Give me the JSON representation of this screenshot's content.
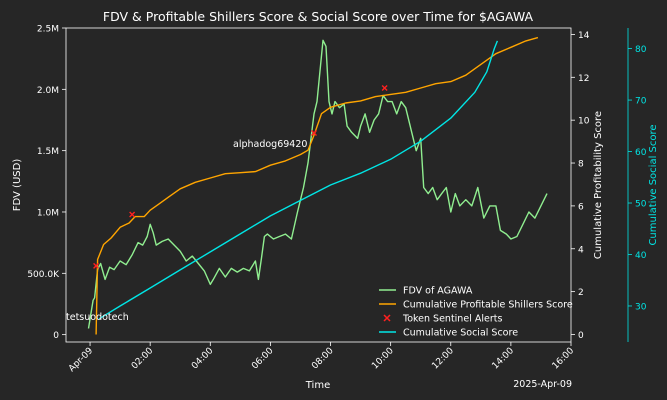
{
  "chart_data": {
    "type": "line",
    "title": "FDV & Profitable Shillers Score & Social Score over Time for $AGAWA",
    "xlabel": "Time",
    "x_date_label": "2025-Apr-09",
    "x_range_hours": [
      -0.8,
      16.0
    ],
    "x_ticks": [
      {
        "h": 0,
        "label": "Apr-09"
      },
      {
        "h": 2,
        "label": "02:00"
      },
      {
        "h": 4,
        "label": "04:00"
      },
      {
        "h": 6,
        "label": "06:00"
      },
      {
        "h": 8,
        "label": "08:00"
      },
      {
        "h": 10,
        "label": "10:00"
      },
      {
        "h": 12,
        "label": "12:00"
      },
      {
        "h": 14,
        "label": "14:00"
      },
      {
        "h": 16,
        "label": "16:00"
      }
    ],
    "y_left": {
      "label": "FDV (USD)",
      "range": [
        -60000,
        2500000
      ],
      "ticks": [
        {
          "v": 0,
          "label": "0"
        },
        {
          "v": 500000,
          "label": "500.0K"
        },
        {
          "v": 1000000,
          "label": "1.0M"
        },
        {
          "v": 1500000,
          "label": "1.5M"
        },
        {
          "v": 2000000,
          "label": "2.0M"
        },
        {
          "v": 2500000,
          "label": "2.5M"
        }
      ]
    },
    "y_right": {
      "label": "Cumulative Profitability Score",
      "range": [
        -0.35,
        14.3
      ],
      "ticks": [
        0,
        2,
        4,
        6,
        8,
        10,
        12,
        14
      ]
    },
    "y_right2": {
      "label": "Cumulative Social Score",
      "range": [
        23,
        84
      ],
      "ticks": [
        30,
        40,
        50,
        60,
        70,
        80
      ]
    },
    "colors": {
      "fdv": "#90ee90",
      "profit": "#ffa500",
      "social": "#00e5e5",
      "alerts": "#ff2020",
      "axis": "#ffffff",
      "social_axis": "#00e5e5",
      "background": "#262626"
    },
    "series": [
      {
        "name": "FDV of AGAWA",
        "axis": "left",
        "points": [
          [
            -0.05,
            50000
          ],
          [
            0.1,
            280000
          ],
          [
            0.15,
            300000
          ],
          [
            0.25,
            530000
          ],
          [
            0.35,
            580000
          ],
          [
            0.5,
            450000
          ],
          [
            0.65,
            550000
          ],
          [
            0.8,
            530000
          ],
          [
            1.0,
            600000
          ],
          [
            1.2,
            570000
          ],
          [
            1.4,
            650000
          ],
          [
            1.6,
            750000
          ],
          [
            1.75,
            730000
          ],
          [
            1.9,
            800000
          ],
          [
            2.0,
            900000
          ],
          [
            2.1,
            830000
          ],
          [
            2.2,
            730000
          ],
          [
            2.4,
            760000
          ],
          [
            2.6,
            780000
          ],
          [
            2.8,
            730000
          ],
          [
            3.0,
            680000
          ],
          [
            3.2,
            600000
          ],
          [
            3.4,
            640000
          ],
          [
            3.6,
            580000
          ],
          [
            3.8,
            520000
          ],
          [
            4.0,
            410000
          ],
          [
            4.1,
            450000
          ],
          [
            4.3,
            540000
          ],
          [
            4.5,
            470000
          ],
          [
            4.7,
            540000
          ],
          [
            4.9,
            510000
          ],
          [
            5.1,
            540000
          ],
          [
            5.3,
            520000
          ],
          [
            5.5,
            600000
          ],
          [
            5.6,
            450000
          ],
          [
            5.7,
            620000
          ],
          [
            5.8,
            800000
          ],
          [
            5.9,
            820000
          ],
          [
            6.1,
            780000
          ],
          [
            6.3,
            800000
          ],
          [
            6.5,
            820000
          ],
          [
            6.7,
            780000
          ],
          [
            6.9,
            1000000
          ],
          [
            7.1,
            1200000
          ],
          [
            7.25,
            1400000
          ],
          [
            7.35,
            1600000
          ],
          [
            7.45,
            1800000
          ],
          [
            7.55,
            1900000
          ],
          [
            7.65,
            2150000
          ],
          [
            7.75,
            2400000
          ],
          [
            7.85,
            2350000
          ],
          [
            7.95,
            1900000
          ],
          [
            8.05,
            1800000
          ],
          [
            8.15,
            1900000
          ],
          [
            8.3,
            1850000
          ],
          [
            8.45,
            1880000
          ],
          [
            8.55,
            1700000
          ],
          [
            8.7,
            1650000
          ],
          [
            8.9,
            1600000
          ],
          [
            9.0,
            1700000
          ],
          [
            9.15,
            1800000
          ],
          [
            9.3,
            1650000
          ],
          [
            9.45,
            1750000
          ],
          [
            9.6,
            1800000
          ],
          [
            9.75,
            1950000
          ],
          [
            9.9,
            1900000
          ],
          [
            10.05,
            1900000
          ],
          [
            10.2,
            1800000
          ],
          [
            10.35,
            1900000
          ],
          [
            10.5,
            1850000
          ],
          [
            10.65,
            1700000
          ],
          [
            10.85,
            1500000
          ],
          [
            11.0,
            1600000
          ],
          [
            11.1,
            1200000
          ],
          [
            11.25,
            1150000
          ],
          [
            11.4,
            1200000
          ],
          [
            11.55,
            1100000
          ],
          [
            11.7,
            1150000
          ],
          [
            11.85,
            1200000
          ],
          [
            12.0,
            1000000
          ],
          [
            12.15,
            1150000
          ],
          [
            12.3,
            1050000
          ],
          [
            12.5,
            1100000
          ],
          [
            12.7,
            1050000
          ],
          [
            12.9,
            1200000
          ],
          [
            13.1,
            950000
          ],
          [
            13.3,
            1050000
          ],
          [
            13.5,
            1050000
          ],
          [
            13.65,
            850000
          ],
          [
            13.85,
            820000
          ],
          [
            14.0,
            780000
          ],
          [
            14.2,
            800000
          ],
          [
            14.4,
            900000
          ],
          [
            14.6,
            1000000
          ],
          [
            14.8,
            950000
          ],
          [
            15.0,
            1050000
          ],
          [
            15.2,
            1150000
          ]
        ]
      },
      {
        "name": "Cumulative Profitable Shillers Score",
        "axis": "right",
        "points": [
          [
            0.2,
            0
          ],
          [
            0.25,
            3.5
          ],
          [
            0.45,
            4.2
          ],
          [
            0.7,
            4.5
          ],
          [
            1.0,
            5.0
          ],
          [
            1.3,
            5.2
          ],
          [
            1.5,
            5.5
          ],
          [
            1.8,
            5.5
          ],
          [
            2.0,
            5.8
          ],
          [
            2.3,
            6.1
          ],
          [
            2.6,
            6.4
          ],
          [
            3.0,
            6.8
          ],
          [
            3.5,
            7.1
          ],
          [
            4.0,
            7.3
          ],
          [
            4.5,
            7.5
          ],
          [
            5.0,
            7.55
          ],
          [
            5.5,
            7.6
          ],
          [
            6.0,
            7.9
          ],
          [
            6.5,
            8.1
          ],
          [
            7.0,
            8.4
          ],
          [
            7.25,
            8.6
          ],
          [
            7.45,
            9.3
          ],
          [
            7.7,
            10.3
          ],
          [
            8.0,
            10.6
          ],
          [
            8.5,
            10.8
          ],
          [
            9.0,
            10.9
          ],
          [
            9.5,
            11.1
          ],
          [
            10.0,
            11.2
          ],
          [
            10.5,
            11.3
          ],
          [
            11.0,
            11.5
          ],
          [
            11.5,
            11.7
          ],
          [
            12.0,
            11.8
          ],
          [
            12.5,
            12.1
          ],
          [
            13.0,
            12.6
          ],
          [
            13.5,
            13.1
          ],
          [
            14.0,
            13.4
          ],
          [
            14.5,
            13.7
          ],
          [
            14.9,
            13.85
          ]
        ]
      },
      {
        "name": "Token Sentinel Alerts",
        "axis": "right",
        "marker": "x",
        "points": [
          [
            0.2,
            3.2
          ],
          [
            1.4,
            5.6
          ],
          [
            7.45,
            9.4
          ],
          [
            9.8,
            11.5
          ]
        ]
      },
      {
        "name": "Cumulative Social Score",
        "axis": "right2",
        "points": [
          [
            0.3,
            27.5
          ],
          [
            1.0,
            30.0
          ],
          [
            2.0,
            33.5
          ],
          [
            3.0,
            37.0
          ],
          [
            4.0,
            40.5
          ],
          [
            5.0,
            44.0
          ],
          [
            6.0,
            47.5
          ],
          [
            7.0,
            50.5
          ],
          [
            8.0,
            53.5
          ],
          [
            9.0,
            55.8
          ],
          [
            10.0,
            58.5
          ],
          [
            11.0,
            62.0
          ],
          [
            12.0,
            66.5
          ],
          [
            12.8,
            71.5
          ],
          [
            13.2,
            75.5
          ],
          [
            13.45,
            80.0
          ],
          [
            13.55,
            81.5
          ]
        ]
      }
    ],
    "annotations": [
      {
        "text": "tetsuodotech",
        "h": -0.8,
        "v": 150000
      },
      {
        "text": "alphadog69420",
        "h": 4.8,
        "v": 1560000
      }
    ],
    "legend": {
      "position": "bottom-right",
      "entries": [
        {
          "label": "FDV of AGAWA",
          "kind": "line",
          "color": "#90ee90"
        },
        {
          "label": "Cumulative Profitable Shillers Score",
          "kind": "line",
          "color": "#ffa500"
        },
        {
          "label": "Token Sentinel Alerts",
          "kind": "x",
          "color": "#ff2020"
        },
        {
          "label": "Cumulative Social Score",
          "kind": "line",
          "color": "#00e5e5"
        }
      ]
    }
  }
}
